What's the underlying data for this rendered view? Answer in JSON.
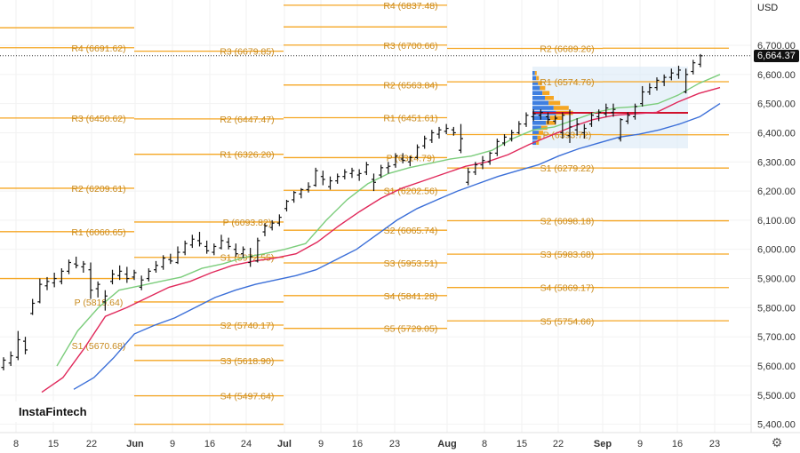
{
  "currency": "USD",
  "last_price": "6,664.37",
  "logo": "InstaFintech",
  "settings_icon": "gear-icon",
  "colors": {
    "pivot": "#f5a623",
    "pivot_text": "#c88a1e",
    "ma_fast": "#7ccd7c",
    "ma_mid": "#e0285a",
    "ma_slow": "#3b6fd8",
    "vpvr_blue": "#3f7fe0",
    "vpvr_orange": "#f5a623",
    "candle": "#111111"
  },
  "chart_data": {
    "type": "ohlc",
    "y_axis": {
      "ylim": [
        5370,
        6760
      ],
      "ticks": [
        "5,400.00",
        "5,500.00",
        "5,600.00",
        "5,700.00",
        "5,800.00",
        "5,900.00",
        "6,000.00",
        "6,100.00",
        "6,200.00",
        "6,300.00",
        "6,400.00",
        "6,500.00",
        "6,600.00",
        "6,700.00"
      ]
    },
    "x_axis": {
      "ticks": [
        "8",
        "15",
        "22",
        "Jun",
        "9",
        "16",
        "24",
        "Jul",
        "9",
        "16",
        "23",
        "Aug",
        "8",
        "15",
        "22",
        "Sep",
        "9",
        "16",
        "23"
      ]
    },
    "pivot_groups": [
      {
        "levels": [
          {
            "label": "R4 (6691.62)",
            "value": 6691.62
          },
          {
            "label": "R3 (6450.62)",
            "value": 6450.62
          },
          {
            "label": "R2 (6209.61)",
            "value": 6209.61
          },
          {
            "label": "R1 (6060.65)",
            "value": 6060.65
          },
          {
            "label": "P (5819.64)",
            "value": 5819.64
          },
          {
            "label": "S1 (5670.68)",
            "value": 5670.68
          }
        ],
        "lines": [
          6760,
          6691.62,
          6450.62,
          6209.61,
          6060.65,
          5900
        ]
      },
      {
        "levels": [
          {
            "label": "R3 (6679.85)",
            "value": 6679.85
          },
          {
            "label": "R2 (6447.47)",
            "value": 6447.47
          },
          {
            "label": "R1 (6326.20)",
            "value": 6326.2
          },
          {
            "label": "P (6093.82)",
            "value": 6093.82
          },
          {
            "label": "S1 (5972.55)",
            "value": 5972.55
          },
          {
            "label": "S2 (5740.17)",
            "value": 5740.17
          },
          {
            "label": "S3 (5618.90)",
            "value": 5618.9
          },
          {
            "label": "S4 (5497.64)",
            "value": 5497.64
          }
        ],
        "lines": [
          6679.85,
          6447.47,
          6326.2,
          6093.82,
          5972.55,
          5819.64,
          5740.17,
          5670.68,
          5618.9,
          5497.64,
          5400
        ]
      },
      {
        "levels": [
          {
            "label": "R4 (6837.48)",
            "value": 6837.48
          },
          {
            "label": "R3 (6700.66)",
            "value": 6700.66
          },
          {
            "label": "R2 (6563.84)",
            "value": 6563.84
          },
          {
            "label": "R1 (6451.61)",
            "value": 6451.61
          },
          {
            "label": "P (6314.79)",
            "value": 6314.79
          },
          {
            "label": "S1 (6202.56)",
            "value": 6202.56
          },
          {
            "label": "S2 (6065.74)",
            "value": 6065.74
          },
          {
            "label": "S3 (5953.51)",
            "value": 5953.51
          },
          {
            "label": "S4 (5841.28)",
            "value": 5841.28
          },
          {
            "label": "S5 (5729.05)",
            "value": 5729.05
          }
        ],
        "lines": [
          6837.48,
          6763,
          6700.66,
          6563.84,
          6451.61,
          6314.79,
          6202.56,
          6065.74,
          5953.51,
          5841.28,
          5729.05
        ]
      },
      {
        "levels": [
          {
            "label": "R2 (6689.26)",
            "value": 6689.26
          },
          {
            "label": "R1 (6574.76)",
            "value": 6574.76
          },
          {
            "label": "P (6393.72)",
            "value": 6393.72
          },
          {
            "label": "S1 (6279.22)",
            "value": 6279.22
          },
          {
            "label": "S2 (6098.18)",
            "value": 6098.18
          },
          {
            "label": "S3 (5983.68)",
            "value": 5983.68
          },
          {
            "label": "S4 (5869.17)",
            "value": 5869.17
          },
          {
            "label": "S5 (5754.66)",
            "value": 5754.66
          }
        ],
        "lines": [
          6689.26,
          6574.76,
          6393.72,
          6279.22,
          6098.18,
          5983.68,
          5869.17,
          5754.66
        ]
      }
    ],
    "ohlc": [
      [
        5595,
        5630,
        5585,
        5620
      ],
      [
        5610,
        5650,
        5600,
        5635
      ],
      [
        5630,
        5720,
        5620,
        5690
      ],
      [
        5685,
        5700,
        5640,
        5655
      ],
      [
        5780,
        5830,
        5775,
        5815
      ],
      [
        5820,
        5900,
        5815,
        5880
      ],
      [
        5875,
        5905,
        5860,
        5890
      ],
      [
        5885,
        5920,
        5870,
        5900
      ],
      [
        5890,
        5935,
        5880,
        5925
      ],
      [
        5925,
        5965,
        5915,
        5955
      ],
      [
        5950,
        5975,
        5935,
        5945
      ],
      [
        5940,
        5960,
        5920,
        5950
      ],
      [
        5930,
        5955,
        5830,
        5860
      ],
      [
        5865,
        5890,
        5835,
        5880
      ],
      [
        5820,
        5860,
        5790,
        5840
      ],
      [
        5890,
        5930,
        5880,
        5915
      ],
      [
        5910,
        5945,
        5895,
        5925
      ],
      [
        5915,
        5940,
        5885,
        5900
      ],
      [
        5905,
        5930,
        5895,
        5920
      ],
      [
        5870,
        5910,
        5860,
        5895
      ],
      [
        5900,
        5935,
        5890,
        5925
      ],
      [
        5930,
        5960,
        5920,
        5945
      ],
      [
        5940,
        5980,
        5930,
        5970
      ],
      [
        5965,
        5985,
        5950,
        5960
      ],
      [
        5955,
        6010,
        5950,
        5990
      ],
      [
        5990,
        6030,
        5980,
        6020
      ],
      [
        6015,
        6050,
        6005,
        6035
      ],
      [
        6030,
        6060,
        6010,
        6020
      ],
      [
        6010,
        6030,
        5985,
        5995
      ],
      [
        5990,
        6020,
        5980,
        6010
      ],
      [
        6005,
        6050,
        6000,
        6030
      ],
      [
        6025,
        6040,
        6000,
        6010
      ],
      [
        6000,
        6020,
        5975,
        5985
      ],
      [
        5985,
        6010,
        5970,
        6000
      ],
      [
        5955,
        6005,
        5940,
        5975
      ],
      [
        5960,
        6040,
        5955,
        6030
      ],
      [
        6060,
        6090,
        6045,
        6080
      ],
      [
        6075,
        6100,
        6065,
        6090
      ],
      [
        6090,
        6120,
        6080,
        6110
      ],
      [
        6140,
        6170,
        6130,
        6165
      ],
      [
        6170,
        6200,
        6160,
        6195
      ],
      [
        6190,
        6210,
        6175,
        6205
      ],
      [
        6205,
        6230,
        6195,
        6215
      ],
      [
        6220,
        6280,
        6215,
        6270
      ],
      [
        6250,
        6270,
        6220,
        6240
      ],
      [
        6215,
        6250,
        6205,
        6235
      ],
      [
        6235,
        6260,
        6225,
        6250
      ],
      [
        6250,
        6275,
        6240,
        6265
      ],
      [
        6260,
        6280,
        6245,
        6270
      ],
      [
        6255,
        6275,
        6235,
        6260
      ],
      [
        6265,
        6300,
        6255,
        6290
      ],
      [
        6240,
        6260,
        6200,
        6230
      ],
      [
        6255,
        6290,
        6245,
        6280
      ],
      [
        6280,
        6300,
        6260,
        6285
      ],
      [
        6290,
        6330,
        6280,
        6320
      ],
      [
        6310,
        6330,
        6295,
        6305
      ],
      [
        6300,
        6320,
        6285,
        6315
      ],
      [
        6315,
        6360,
        6310,
        6350
      ],
      [
        6355,
        6390,
        6345,
        6380
      ],
      [
        6375,
        6410,
        6365,
        6400
      ],
      [
        6395,
        6420,
        6380,
        6410
      ],
      [
        6405,
        6430,
        6395,
        6415
      ],
      [
        6410,
        6420,
        6390,
        6400
      ],
      [
        6340,
        6430,
        6330,
        6380
      ],
      [
        6230,
        6280,
        6220,
        6265
      ],
      [
        6265,
        6300,
        6255,
        6290
      ],
      [
        6290,
        6320,
        6275,
        6305
      ],
      [
        6300,
        6335,
        6290,
        6330
      ],
      [
        6330,
        6380,
        6320,
        6370
      ],
      [
        6365,
        6395,
        6355,
        6385
      ],
      [
        6380,
        6410,
        6370,
        6400
      ],
      [
        6400,
        6440,
        6395,
        6430
      ],
      [
        6430,
        6470,
        6420,
        6460
      ],
      [
        6455,
        6480,
        6440,
        6465
      ],
      [
        6460,
        6480,
        6445,
        6470
      ],
      [
        6455,
        6470,
        6430,
        6445
      ],
      [
        6440,
        6460,
        6430,
        6450
      ],
      [
        6400,
        6470,
        6380,
        6460
      ],
      [
        6390,
        6480,
        6365,
        6420
      ],
      [
        6410,
        6450,
        6390,
        6430
      ],
      [
        6400,
        6430,
        6380,
        6415
      ],
      [
        6430,
        6470,
        6420,
        6460
      ],
      [
        6455,
        6480,
        6440,
        6470
      ],
      [
        6465,
        6500,
        6455,
        6485
      ],
      [
        6470,
        6500,
        6455,
        6480
      ],
      [
        6380,
        6450,
        6370,
        6445
      ],
      [
        6440,
        6470,
        6430,
        6460
      ],
      [
        6455,
        6500,
        6445,
        6490
      ],
      [
        6500,
        6560,
        6490,
        6540
      ],
      [
        6540,
        6570,
        6530,
        6555
      ],
      [
        6555,
        6590,
        6545,
        6580
      ],
      [
        6575,
        6600,
        6560,
        6590
      ],
      [
        6590,
        6620,
        6580,
        6605
      ],
      [
        6600,
        6630,
        6585,
        6615
      ],
      [
        6540,
        6620,
        6535,
        6600
      ],
      [
        6610,
        6650,
        6600,
        6640
      ],
      [
        6635,
        6670,
        6625,
        6664
      ]
    ],
    "series": [
      {
        "name": "",
        "color": "#7ccd7c",
        "values": [
          5600,
          5720,
          5800,
          5860,
          5875,
          5890,
          5905,
          5935,
          5950,
          5972,
          5985,
          6000,
          6020,
          6100,
          6170,
          6225,
          6260,
          6280,
          6295,
          6310,
          6320,
          6340,
          6380,
          6410,
          6420,
          6445,
          6470,
          6485,
          6490,
          6500,
          6530,
          6570,
          6600
        ]
      },
      {
        "name": "",
        "color": "#e0285a",
        "values": [
          5510,
          5560,
          5660,
          5770,
          5800,
          5835,
          5870,
          5890,
          5920,
          5945,
          5960,
          5970,
          5985,
          6025,
          6080,
          6130,
          6175,
          6210,
          6235,
          6260,
          6285,
          6300,
          6325,
          6360,
          6390,
          6420,
          6445,
          6460,
          6465,
          6470,
          6505,
          6535,
          6555
        ]
      },
      {
        "name": "",
        "color": "#3b6fd8",
        "values": [
          5520,
          5560,
          5630,
          5710,
          5740,
          5765,
          5800,
          5835,
          5860,
          5880,
          5895,
          5910,
          5930,
          5965,
          6000,
          6050,
          6100,
          6140,
          6170,
          6200,
          6225,
          6250,
          6270,
          6290,
          6320,
          6345,
          6365,
          6385,
          6395,
          6410,
          6430,
          6455,
          6500
        ]
      }
    ]
  }
}
